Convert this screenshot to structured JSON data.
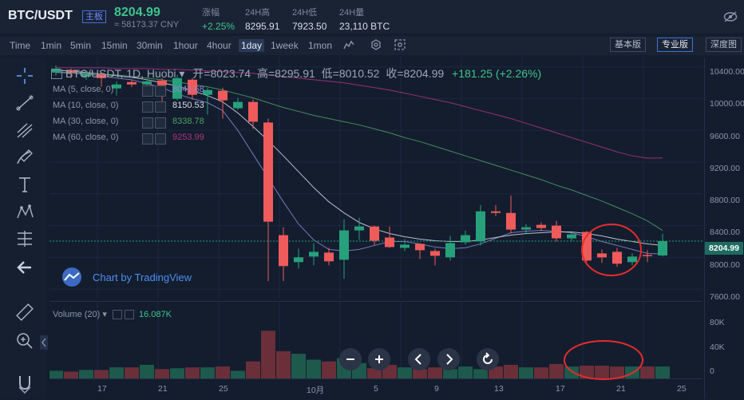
{
  "header": {
    "pair": "BTC/USDT",
    "board_label": "主板",
    "last_price": "8204.99",
    "cny_price": "≈ 58173.37 CNY",
    "stats": [
      {
        "label": "涨幅",
        "value": "+2.25%"
      },
      {
        "label": "24H高",
        "value": "8295.91"
      },
      {
        "label": "24H低",
        "value": "7923.50"
      },
      {
        "label": "24H量",
        "value": "23,110 BTC"
      }
    ]
  },
  "timeframes": [
    "Time",
    "1min",
    "5min",
    "15min",
    "30min",
    "1hour",
    "4hour",
    "1day",
    "1week",
    "1mon"
  ],
  "active_timeframe": "1day",
  "view_modes": [
    "基本版",
    "专业版",
    "深度图"
  ],
  "active_view": "专业版",
  "legend": {
    "title": "BTC/USDT, 1D, Huobi",
    "open": "开=8023.74",
    "high": "高=8295.91",
    "low": "低=8010.52",
    "close": "收=8204.99",
    "change": "+181.25 (+2.26%)"
  },
  "moving_averages": [
    {
      "label": "MA (5, close, 0)",
      "value": "8041.68",
      "color": "#8e86d6"
    },
    {
      "label": "MA (10, close, 0)",
      "value": "8150.53",
      "color": "#d8dde6"
    },
    {
      "label": "MA (30, close, 0)",
      "value": "8338.78",
      "color": "#4fa063"
    },
    {
      "label": "MA (60, close, 0)",
      "value": "9253.99",
      "color": "#b0347f"
    }
  ],
  "price_axis": [
    "10400.00",
    "10000.00",
    "9600.00",
    "9200.00",
    "8800.00",
    "8400.00",
    "8000.00",
    "7600.00"
  ],
  "current_price_tag": "8204.99",
  "volume": {
    "label": "Volume (20)",
    "value": "16.087K",
    "axis": [
      "80K",
      "40K",
      "0"
    ]
  },
  "x_axis": [
    "17",
    "21",
    "25",
    "10月",
    "5",
    "9",
    "13",
    "17",
    "21",
    "25"
  ],
  "watermark": "Chart by TradingView",
  "colors": {
    "up": "#26a17b",
    "down": "#ef5b5b",
    "bg": "#131d2e",
    "accent": "#3a74d9"
  },
  "chart_data": {
    "type": "candlestick",
    "series": [
      {
        "o": 10330,
        "c": 10380,
        "h": 10420,
        "l": 10290
      },
      {
        "o": 10360,
        "c": 10330,
        "h": 10380,
        "l": 10260
      },
      {
        "o": 10280,
        "c": 10310,
        "h": 10350,
        "l": 10240
      },
      {
        "o": 10310,
        "c": 10260,
        "h": 10330,
        "l": 10150
      },
      {
        "o": 10130,
        "c": 10180,
        "h": 10220,
        "l": 10040
      },
      {
        "o": 10210,
        "c": 10180,
        "h": 10240,
        "l": 10150
      },
      {
        "o": 10180,
        "c": 10220,
        "h": 10250,
        "l": 10160
      },
      {
        "o": 10230,
        "c": 10170,
        "h": 10260,
        "l": 9950
      },
      {
        "o": 10000,
        "c": 10260,
        "h": 10300,
        "l": 9980
      },
      {
        "o": 10240,
        "c": 10050,
        "h": 10260,
        "l": 9990
      },
      {
        "o": 10050,
        "c": 10110,
        "h": 10140,
        "l": 9800
      },
      {
        "o": 10100,
        "c": 9980,
        "h": 10140,
        "l": 9750
      },
      {
        "o": 9880,
        "c": 9960,
        "h": 10010,
        "l": 9860
      },
      {
        "o": 9960,
        "c": 9710,
        "h": 9990,
        "l": 9620
      },
      {
        "o": 9700,
        "c": 8450,
        "h": 9750,
        "l": 7700
      },
      {
        "o": 8280,
        "c": 7890,
        "h": 8380,
        "l": 7700
      },
      {
        "o": 7940,
        "c": 8000,
        "h": 8110,
        "l": 7860
      },
      {
        "o": 8010,
        "c": 8070,
        "h": 8180,
        "l": 7900
      },
      {
        "o": 8060,
        "c": 7950,
        "h": 8120,
        "l": 7900
      },
      {
        "o": 7970,
        "c": 8340,
        "h": 8480,
        "l": 7730
      },
      {
        "o": 8340,
        "c": 8390,
        "h": 8500,
        "l": 8220
      },
      {
        "o": 8390,
        "c": 8210,
        "h": 8400,
        "l": 8150
      },
      {
        "o": 8250,
        "c": 8130,
        "h": 8390,
        "l": 8120
      },
      {
        "o": 8120,
        "c": 8160,
        "h": 8230,
        "l": 8080
      },
      {
        "o": 8170,
        "c": 8090,
        "h": 8180,
        "l": 7980
      },
      {
        "o": 8080,
        "c": 8020,
        "h": 8110,
        "l": 7900
      },
      {
        "o": 8000,
        "c": 8180,
        "h": 8270,
        "l": 7960
      },
      {
        "o": 8190,
        "c": 8280,
        "h": 8340,
        "l": 8160
      },
      {
        "o": 8200,
        "c": 8580,
        "h": 8660,
        "l": 8150
      },
      {
        "o": 8580,
        "c": 8560,
        "h": 8660,
        "l": 8520
      },
      {
        "o": 8560,
        "c": 8350,
        "h": 8780,
        "l": 8300
      },
      {
        "o": 8350,
        "c": 8380,
        "h": 8420,
        "l": 8290
      },
      {
        "o": 8410,
        "c": 8370,
        "h": 8440,
        "l": 8330
      },
      {
        "o": 8400,
        "c": 8240,
        "h": 8460,
        "l": 8200
      },
      {
        "o": 8240,
        "c": 8290,
        "h": 8310,
        "l": 8210
      },
      {
        "o": 8320,
        "c": 7960,
        "h": 8330,
        "l": 7940
      },
      {
        "o": 8050,
        "c": 8000,
        "h": 8100,
        "l": 7930
      },
      {
        "o": 8070,
        "c": 7920,
        "h": 8120,
        "l": 7880
      },
      {
        "o": 7940,
        "c": 8010,
        "h": 8050,
        "l": 7900
      },
      {
        "o": 8030,
        "c": 8020,
        "h": 8090,
        "l": 7940
      },
      {
        "o": 8024,
        "c": 8205,
        "h": 8296,
        "l": 8011
      }
    ],
    "volume": [
      9,
      8,
      10,
      10,
      13,
      13,
      16,
      11,
      12,
      13,
      13,
      14,
      9,
      20,
      56,
      32,
      29,
      22,
      20,
      24,
      18,
      12,
      16,
      13,
      11,
      13,
      11,
      14,
      11,
      14,
      16,
      13,
      13,
      17,
      14,
      15,
      15,
      14,
      14,
      14,
      14
    ],
    "ma": {
      "MA5": [
        10330,
        10325,
        10310,
        10290,
        10260,
        10240,
        10190,
        10140,
        10060,
        10000,
        9950,
        9850,
        9600,
        9300,
        9000,
        8700,
        8420,
        8220,
        8100,
        8080,
        8100,
        8150,
        8200,
        8200,
        8170,
        8130,
        8110,
        8120,
        8170,
        8240,
        8310,
        8330,
        8340,
        8330,
        8310,
        8260,
        8200,
        8150,
        8100,
        8050,
        8042
      ],
      "MA10": [
        10360,
        10350,
        10330,
        10310,
        10290,
        10270,
        10240,
        10200,
        10160,
        10100,
        10040,
        9960,
        9820,
        9650,
        9470,
        9280,
        9080,
        8880,
        8700,
        8560,
        8440,
        8360,
        8300,
        8260,
        8230,
        8210,
        8200,
        8200,
        8220,
        8250,
        8280,
        8300,
        8310,
        8320,
        8320,
        8300,
        8270,
        8230,
        8200,
        8170,
        8151
      ],
      "MA30": [
        10340,
        10330,
        10320,
        10310,
        10300,
        10280,
        10260,
        10240,
        10210,
        10180,
        10150,
        10110,
        10060,
        10010,
        9950,
        9890,
        9840,
        9790,
        9750,
        9710,
        9670,
        9620,
        9570,
        9510,
        9460,
        9400,
        9340,
        9280,
        9220,
        9160,
        9100,
        9040,
        8980,
        8910,
        8850,
        8780,
        8710,
        8630,
        8550,
        8460,
        8339
      ],
      "MA60": [
        10390,
        10390,
        10390,
        10390,
        10380,
        10380,
        10380,
        10370,
        10370,
        10360,
        10350,
        10340,
        10330,
        10320,
        10300,
        10280,
        10260,
        10240,
        10220,
        10200,
        10170,
        10140,
        10110,
        10070,
        10030,
        9990,
        9950,
        9900,
        9850,
        9800,
        9750,
        9690,
        9630,
        9570,
        9510,
        9450,
        9390,
        9330,
        9280,
        9250,
        9254
      ]
    },
    "ylim": [
      7480,
      10520
    ],
    "vol_ylim": [
      0,
      90
    ]
  }
}
